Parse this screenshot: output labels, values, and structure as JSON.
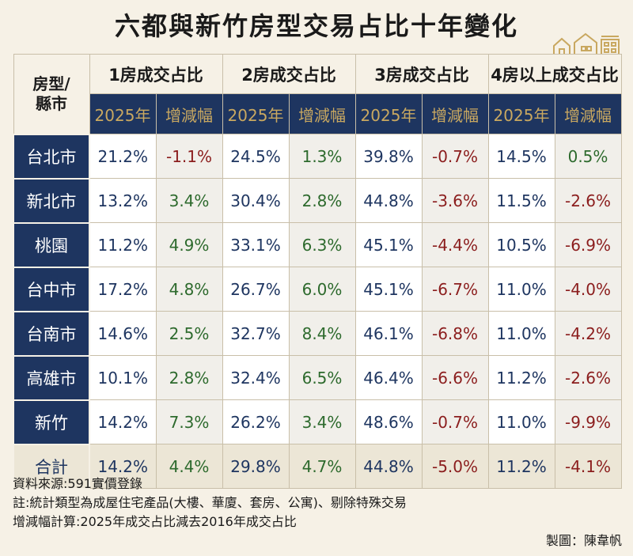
{
  "title": "六都與新竹房型交易占比十年變化",
  "corner_label_1": "房型/",
  "corner_label_2": "縣市",
  "groups": [
    "1房成交占比",
    "2房成交占比",
    "3房成交占比",
    "4房以上成交占比"
  ],
  "subheaders": [
    "2025年",
    "增減幅",
    "2025年",
    "增減幅",
    "2025年",
    "增減幅",
    "2025年",
    "增減幅"
  ],
  "rows": [
    {
      "city": "台北市",
      "cells": [
        "21.2%",
        "-1.1%",
        "24.5%",
        "1.3%",
        "39.8%",
        "-0.7%",
        "14.5%",
        "0.5%"
      ]
    },
    {
      "city": "新北市",
      "cells": [
        "13.2%",
        "3.4%",
        "30.4%",
        "2.8%",
        "44.8%",
        "-3.6%",
        "11.5%",
        "-2.6%"
      ]
    },
    {
      "city": "桃園",
      "cells": [
        "11.2%",
        "4.9%",
        "33.1%",
        "6.3%",
        "45.1%",
        "-4.4%",
        "10.5%",
        "-6.9%"
      ]
    },
    {
      "city": "台中市",
      "cells": [
        "17.2%",
        "4.8%",
        "26.7%",
        "6.0%",
        "45.1%",
        "-6.7%",
        "11.0%",
        "-4.0%"
      ]
    },
    {
      "city": "台南市",
      "cells": [
        "14.6%",
        "2.5%",
        "32.7%",
        "8.4%",
        "46.1%",
        "-6.8%",
        "11.0%",
        "-4.2%"
      ]
    },
    {
      "city": "高雄市",
      "cells": [
        "10.1%",
        "2.8%",
        "32.4%",
        "6.5%",
        "46.4%",
        "-6.6%",
        "11.2%",
        "-2.6%"
      ]
    },
    {
      "city": "新竹",
      "cells": [
        "14.2%",
        "7.3%",
        "26.2%",
        "3.4%",
        "48.6%",
        "-0.7%",
        "11.0%",
        "-9.9%"
      ]
    },
    {
      "city": "合計",
      "cells": [
        "14.2%",
        "4.4%",
        "29.8%",
        "4.7%",
        "44.8%",
        "-5.0%",
        "11.2%",
        "-4.1%"
      ]
    }
  ],
  "notes": [
    "資料來源:591實價登錄",
    "註:統計類型為成屋住宅產品(大樓、華廈、套房、公寓)、剔除特殊交易",
    "增減幅計算:2025年成交占比減去2016年成交占比"
  ],
  "credit": "製圖：陳韋帆",
  "colors": {
    "navy": "#1e3560",
    "gold": "#c9a860",
    "negative": "#8b1d1d",
    "positive": "#2d6a2d",
    "background": "#f6f1e6"
  },
  "decorative_icon": "houses-icon"
}
